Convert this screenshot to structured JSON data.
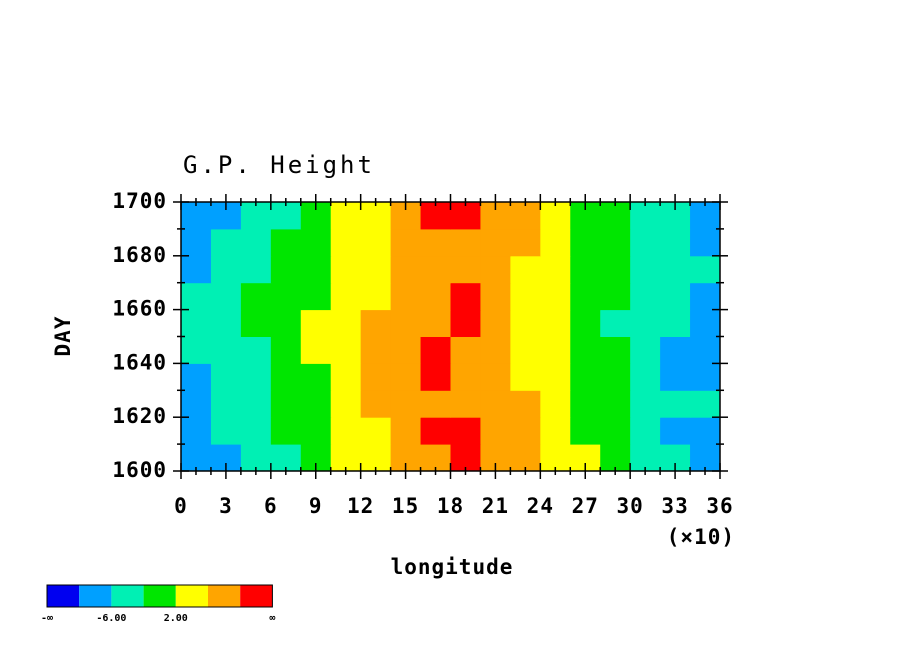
{
  "chart_data": {
    "type": "heatmap",
    "title": "G.P. Height",
    "x_label": "longitude",
    "y_label": "DAY",
    "x_scale_note": "(×10)",
    "xlim": [
      0,
      360
    ],
    "ylim": [
      1600,
      1700
    ],
    "xticks": [
      {
        "value": 0,
        "label": "0"
      },
      {
        "value": 30,
        "label": "3"
      },
      {
        "value": 60,
        "label": "6"
      },
      {
        "value": 90,
        "label": "9"
      },
      {
        "value": 120,
        "label": "12"
      },
      {
        "value": 150,
        "label": "15"
      },
      {
        "value": 180,
        "label": "18"
      },
      {
        "value": 210,
        "label": "21"
      },
      {
        "value": 240,
        "label": "24"
      },
      {
        "value": 270,
        "label": "27"
      },
      {
        "value": 300,
        "label": "30"
      },
      {
        "value": 330,
        "label": "33"
      },
      {
        "value": 360,
        "label": "36"
      }
    ],
    "xminorticks": [
      10,
      20,
      40,
      50,
      70,
      80,
      100,
      110,
      130,
      140,
      160,
      170,
      190,
      200,
      220,
      230,
      250,
      260,
      280,
      290,
      310,
      320,
      340,
      350
    ],
    "yticks": [
      1600,
      1620,
      1640,
      1660,
      1680,
      1700
    ],
    "yminorticks": [
      1610,
      1630,
      1650,
      1670,
      1690
    ],
    "x": [
      10,
      30,
      50,
      70,
      90,
      110,
      130,
      150,
      170,
      190,
      210,
      230,
      250,
      270,
      290,
      310,
      330,
      350
    ],
    "y": [
      1605,
      1615,
      1625,
      1635,
      1645,
      1655,
      1665,
      1675,
      1685,
      1695
    ],
    "z": [
      [
        -8,
        -7,
        -5,
        -3,
        -1,
        2,
        4,
        7,
        9,
        11,
        9,
        7,
        5,
        2,
        -1,
        -4,
        -6,
        -8
      ],
      [
        -9,
        -6,
        -4,
        -2,
        0,
        3,
        5,
        7,
        10,
        11,
        8,
        6,
        4,
        1,
        -2,
        -4,
        -7,
        -7
      ],
      [
        -7,
        -5,
        -3,
        -2,
        1,
        3,
        6,
        8,
        9,
        8,
        7,
        6,
        3,
        1,
        -1,
        -3,
        -5,
        -6
      ],
      [
        -8,
        -6,
        -4,
        -1,
        1,
        4,
        6,
        9,
        10,
        8,
        7,
        5,
        3,
        0,
        -2,
        -4,
        -7,
        -9
      ],
      [
        -6,
        -5,
        -3,
        -1,
        2,
        5,
        7,
        8,
        11,
        9,
        7,
        4,
        2,
        0,
        -2,
        -5,
        -7,
        -8
      ],
      [
        -5,
        -4,
        -2,
        0,
        2,
        4,
        6,
        7,
        8,
        10,
        7,
        5,
        2,
        0,
        -3,
        -5,
        -6,
        -7
      ],
      [
        -6,
        -4,
        -2,
        0,
        1,
        3,
        5,
        8,
        9,
        11,
        8,
        5,
        3,
        1,
        -2,
        -4,
        -6,
        -7
      ],
      [
        -7,
        -5,
        -3,
        -1,
        0,
        2,
        4,
        7,
        8,
        7,
        6,
        4,
        2,
        0,
        -2,
        -4,
        -5,
        -6
      ],
      [
        -8,
        -6,
        -4,
        -2,
        0,
        2,
        5,
        7,
        9,
        8,
        7,
        6,
        3,
        1,
        -1,
        -3,
        -5,
        -7
      ],
      [
        -9,
        -7,
        -5,
        -3,
        -1,
        2,
        4,
        8,
        11,
        10,
        8,
        6,
        4,
        1,
        -2,
        -4,
        -6,
        -8
      ]
    ],
    "levels": [
      -10,
      -6,
      -2,
      2,
      6,
      10
    ],
    "colors": [
      "#0000f0",
      "#00a0ff",
      "#00f0b4",
      "#00e600",
      "#ffff00",
      "#ffa500",
      "#ff0000"
    ],
    "colorbar_labels": [
      "-∞",
      null,
      "-6.00",
      null,
      "2.00",
      null,
      null,
      "∞"
    ]
  }
}
